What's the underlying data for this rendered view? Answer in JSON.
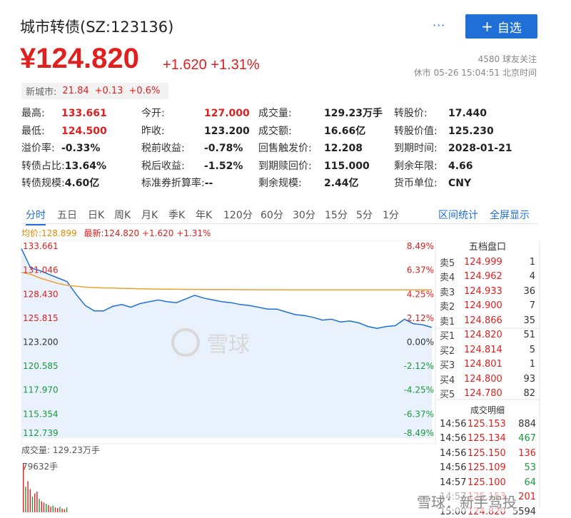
{
  "header": {
    "title": "城市转债(SZ:123136)",
    "more_label": "···",
    "add_label": "自选",
    "price": "¥124.820",
    "change": "+1.620 +1.31%",
    "followers": "4580 球友关注",
    "status": "休市 05-26 15:04:51 北京时间"
  },
  "stock_tag": {
    "name": "新城市:",
    "price": "21.84",
    "change": "+0.13",
    "percent": "+0.6%"
  },
  "quotes": [
    [
      {
        "label": "最高:",
        "value": "133.661",
        "color": "red"
      },
      {
        "label": "今开:",
        "value": "127.000",
        "color": "red"
      },
      {
        "label": "成交量:",
        "value": "129.23万手"
      },
      {
        "label": "转股价:",
        "value": "17.440"
      }
    ],
    [
      {
        "label": "最低:",
        "value": "124.500",
        "color": "red"
      },
      {
        "label": "昨收:",
        "value": "123.200"
      },
      {
        "label": "成交额:",
        "value": "16.66亿"
      },
      {
        "label": "转股价值:",
        "value": "125.230"
      }
    ],
    [
      {
        "label": "溢价率:",
        "value": "-0.33%"
      },
      {
        "label": "税前收益:",
        "value": "-0.78%"
      },
      {
        "label": "回售触发价:",
        "value": "12.208"
      },
      {
        "label": "到期时间:",
        "value": "2028-01-21"
      }
    ],
    [
      {
        "label": "转债占比:",
        "value": "13.64%"
      },
      {
        "label": "税后收益:",
        "value": "-1.52%"
      },
      {
        "label": "到期赎回价:",
        "value": "115.000"
      },
      {
        "label": "剩余年限:",
        "value": "4.66"
      }
    ],
    [
      {
        "label": "转债规模:",
        "value": "4.60亿"
      },
      {
        "label": "标准券折算率:",
        "value": "--"
      },
      {
        "label": "剩余规模:",
        "value": "2.44亿"
      },
      {
        "label": "货币单位:",
        "value": "CNY"
      }
    ]
  ],
  "tabs": [
    "分时",
    "五日",
    "日K",
    "周K",
    "月K",
    "季K",
    "年K",
    "120分",
    "60分",
    "30分",
    "15分",
    "5分",
    "1分"
  ],
  "tab_links": [
    "区间统计",
    "全屏显示"
  ],
  "legend": {
    "avg": "均价:128.899",
    "latest": "最新:124.820 +1.620 +1.31%"
  },
  "order_book": {
    "title": "五档盘口",
    "rows": [
      {
        "label": "卖5",
        "price": "124.999",
        "vol": "1"
      },
      {
        "label": "卖4",
        "price": "124.962",
        "vol": "4"
      },
      {
        "label": "卖3",
        "price": "124.933",
        "vol": "36"
      },
      {
        "label": "卖2",
        "price": "124.900",
        "vol": "7"
      },
      {
        "label": "卖1",
        "price": "124.866",
        "vol": "35"
      },
      {
        "label": "买1",
        "price": "124.820",
        "vol": "51"
      },
      {
        "label": "买2",
        "price": "124.814",
        "vol": "5"
      },
      {
        "label": "买3",
        "price": "124.801",
        "vol": "1"
      },
      {
        "label": "买4",
        "price": "124.800",
        "vol": "93"
      },
      {
        "label": "买5",
        "price": "124.780",
        "vol": "82"
      }
    ]
  },
  "trades": {
    "title": "成交明细",
    "rows": [
      {
        "time": "14:56",
        "price": "125.153",
        "vol": "884",
        "color": "black"
      },
      {
        "time": "14:56",
        "price": "125.134",
        "vol": "467",
        "color": "green"
      },
      {
        "time": "14:56",
        "price": "125.150",
        "vol": "136",
        "color": "red"
      },
      {
        "time": "14:56",
        "price": "125.109",
        "vol": "53",
        "color": "green"
      },
      {
        "time": "14:57",
        "price": "125.100",
        "vol": "64",
        "color": "green"
      },
      {
        "time": "14:57",
        "price": "125.153",
        "vol": "201",
        "color": "red"
      },
      {
        "time": "15:00",
        "price": "124.820",
        "vol": "5594",
        "color": "black"
      }
    ]
  },
  "volume": {
    "label": "成交量: 129.23万手",
    "max": "79632手"
  },
  "watermark": "雪球",
  "footer_watermark": "雪球：新手驾投",
  "chart_data": {
    "type": "line",
    "y_left_ticks": [
      "133.661",
      "131.046",
      "128.430",
      "125.815",
      "123.200",
      "120.585",
      "117.970",
      "115.354",
      "112.739"
    ],
    "y_right_ticks": [
      "8.49%",
      "6.37%",
      "4.25%",
      "2.12%",
      "0.00%",
      "-2.12%",
      "-4.25%",
      "-6.37%",
      "-8.49%"
    ],
    "ylim": [
      112.739,
      133.661
    ],
    "series": [
      {
        "name": "最新",
        "color": "#1f6fd6",
        "values": [
          133.4,
          131.3,
          131.0,
          130.6,
          130.2,
          129.8,
          128.4,
          127.2,
          126.6,
          126.6,
          127.1,
          127.3,
          127.0,
          127.4,
          127.6,
          127.8,
          127.6,
          127.5,
          127.9,
          128.3,
          128.0,
          127.8,
          127.6,
          127.5,
          127.3,
          127.2,
          127.0,
          126.8,
          126.8,
          126.5,
          126.2,
          126.1,
          125.9,
          125.6,
          125.7,
          125.4,
          125.5,
          125.3,
          124.9,
          124.7,
          124.9,
          125.0,
          125.7,
          125.2,
          125.1,
          124.8
        ]
      },
      {
        "name": "均价",
        "color": "#f0a030",
        "values": [
          130.8,
          130.6,
          130.2,
          129.9,
          129.6,
          129.4,
          129.3,
          129.2,
          129.15,
          129.1,
          129.1,
          129.05,
          129.05,
          129.0,
          129.0,
          128.98,
          128.97,
          128.96,
          128.95,
          128.95,
          128.94,
          128.94,
          128.93,
          128.93,
          128.92,
          128.92,
          128.91,
          128.91,
          128.91,
          128.9,
          128.9,
          128.9,
          128.9,
          128.9,
          128.9,
          128.9,
          128.9,
          128.9,
          128.9,
          128.9,
          128.9,
          128.9,
          128.9,
          128.9,
          128.9,
          128.899
        ]
      }
    ],
    "volume_max": 79632,
    "volume_values": [
      79632,
      42000,
      51000,
      38000,
      26000,
      31000,
      34000,
      22000,
      18000,
      16000,
      14000,
      12000,
      9000,
      11000,
      8000,
      7000,
      9000,
      6000,
      5000,
      8000
    ]
  }
}
